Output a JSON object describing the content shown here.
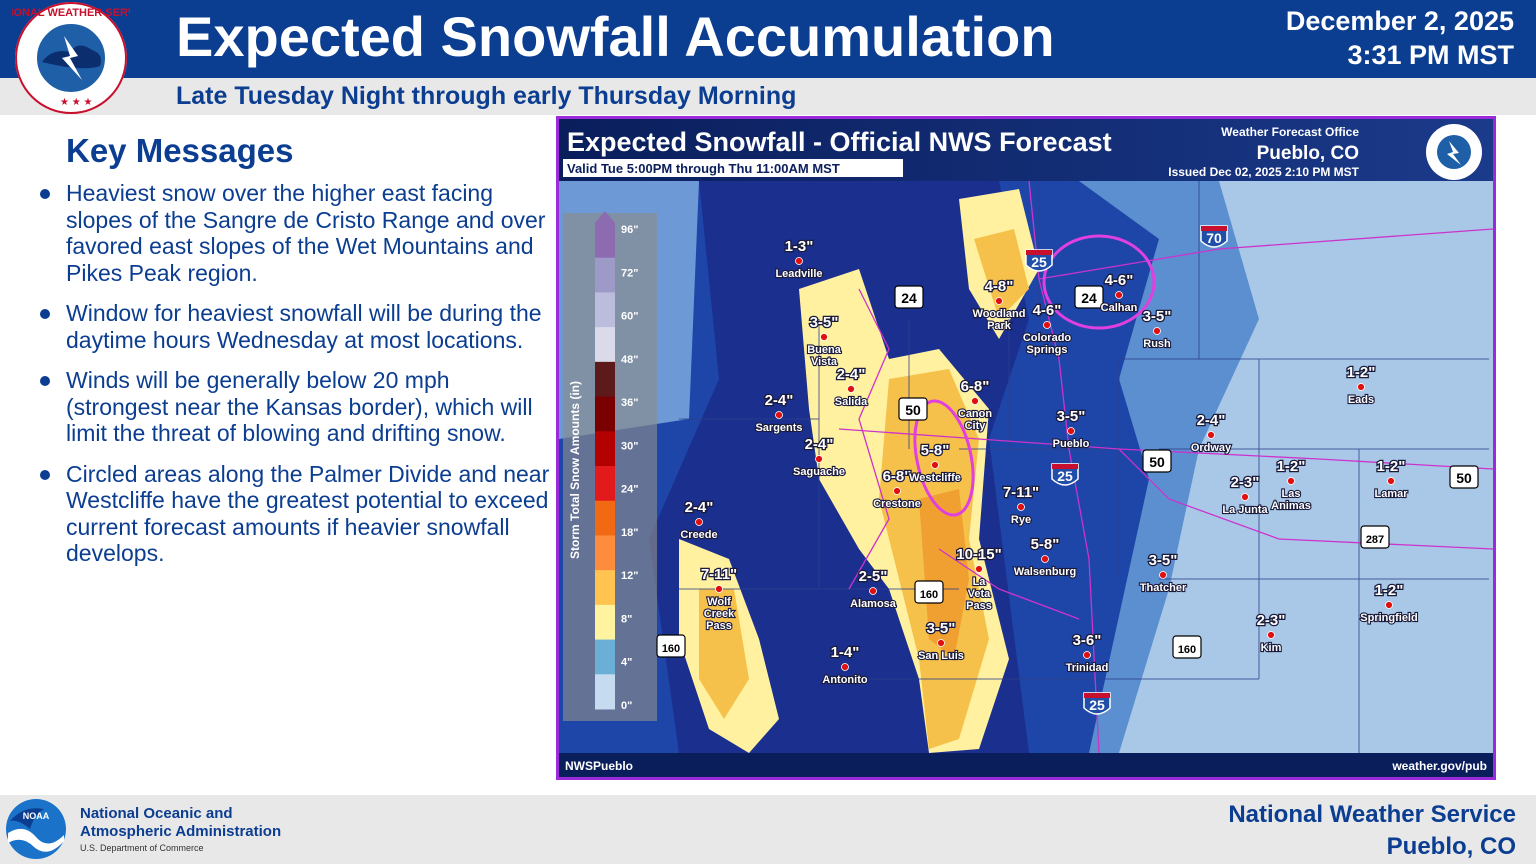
{
  "header": {
    "title": "Expected Snowfall Accumulation",
    "date": "December 2, 2025",
    "time": "3:31 PM MST",
    "subtitle": "Late Tuesday Night through early Thursday Morning"
  },
  "logo": {
    "text": "NATIONAL WEATHER SERVICE"
  },
  "key_messages": {
    "heading": "Key Messages",
    "items": [
      "Heaviest snow over the higher east facing slopes of the Sangre de Cristo Range and over favored east slopes of the Wet Mountains and Pikes Peak region.",
      "Window for heaviest snowfall will be during the daytime hours Wednesday at most locations.",
      "Winds will be generally below 20 mph (strongest near the Kansas border), which will limit the threat of blowing and drifting snow.",
      "Circled areas along the Palmer Divide and near Westcliffe have the greatest potential to exceed current forecast amounts if heavier snowfall develops."
    ]
  },
  "map": {
    "title": "Expected Snowfall - Official NWS Forecast",
    "valid": "Valid Tue 5:00PM through Thu 11:00AM MST",
    "office_label": "Weather Forecast Office",
    "office": "Pueblo, CO",
    "issued": "Issued Dec 02, 2025 2:10 PM MST",
    "footer_left": "NWSPueblo",
    "footer_right": "weather.gov/pub",
    "legend_title": "Storm Total Snow Amounts (in)",
    "legend_labels": [
      "96\"",
      "72\"",
      "60\"",
      "48\"",
      "36\"",
      "30\"",
      "24\"",
      "18\"",
      "12\"",
      "8\"",
      "4\"",
      "0\""
    ],
    "legend_colors": [
      "#8c6bb1",
      "#9e9ac8",
      "#bcbddc",
      "#dadaeb",
      "#5c1a1a",
      "#7a0000",
      "#b30000",
      "#e31a1c",
      "#f16913",
      "#fd8d3c",
      "#fec44f",
      "#fff3a0",
      "#6baed6",
      "#c6dbef"
    ],
    "highways": [
      "70",
      "25",
      "24",
      "24",
      "50",
      "50",
      "50",
      "25",
      "160",
      "160",
      "160",
      "287",
      "25"
    ],
    "locations": [
      {
        "name": "Leadville",
        "amount": "1-3\""
      },
      {
        "name": "Buena Vista",
        "amount": "3-5\""
      },
      {
        "name": "Salida",
        "amount": "2-4\""
      },
      {
        "name": "Sargents",
        "amount": "2-4\""
      },
      {
        "name": "Saguache",
        "amount": "2-4\""
      },
      {
        "name": "Creede",
        "amount": "2-4\""
      },
      {
        "name": "Wolf Creek Pass",
        "amount": "7-11\""
      },
      {
        "name": "Alamosa",
        "amount": "2-5\""
      },
      {
        "name": "Antonito",
        "amount": "1-4\""
      },
      {
        "name": "San Luis",
        "amount": "3-5\""
      },
      {
        "name": "La Veta Pass",
        "amount": "10-15\""
      },
      {
        "name": "Crestone",
        "amount": "6-8\""
      },
      {
        "name": "Westcliffe",
        "amount": "5-8\""
      },
      {
        "name": "Canon City",
        "amount": "6-8\""
      },
      {
        "name": "Woodland Park",
        "amount": "4-8\""
      },
      {
        "name": "Colorado Springs",
        "amount": "4-6\""
      },
      {
        "name": "Calhan",
        "amount": "4-6\""
      },
      {
        "name": "Rush",
        "amount": "3-5\""
      },
      {
        "name": "Pueblo",
        "amount": "3-5\""
      },
      {
        "name": "Rye",
        "amount": "7-11\""
      },
      {
        "name": "Walsenburg",
        "amount": "5-8\""
      },
      {
        "name": "Trinidad",
        "amount": "3-6\""
      },
      {
        "name": "Ordway",
        "amount": "2-4\""
      },
      {
        "name": "La Junta",
        "amount": "2-3\""
      },
      {
        "name": "Las Animas",
        "amount": "1-2\""
      },
      {
        "name": "Lamar",
        "amount": "1-2\""
      },
      {
        "name": "Eads",
        "amount": "1-2\""
      },
      {
        "name": "Thatcher",
        "amount": "3-5\""
      },
      {
        "name": "Kim",
        "amount": "2-3\""
      },
      {
        "name": "Springfield",
        "amount": "1-2\""
      }
    ]
  },
  "footer": {
    "noaa_line1": "National Oceanic and",
    "noaa_line2": "Atmospheric Administration",
    "noaa_sub": "U.S. Department of Commerce",
    "nws_line1": "National Weather Service",
    "nws_line2": "Pueblo, CO"
  }
}
